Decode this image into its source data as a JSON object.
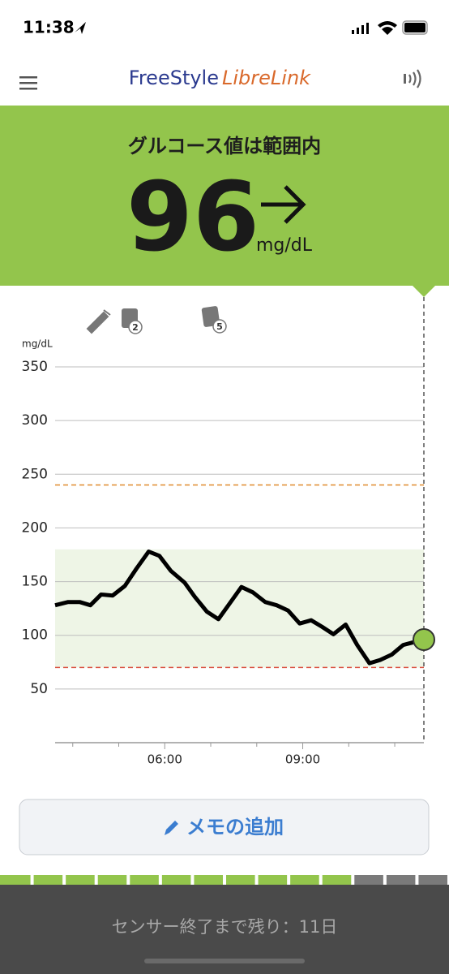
{
  "status_bar": {
    "time": "11:38"
  },
  "header": {
    "brand": "FreeStyle",
    "product": "LibreLink"
  },
  "banner": {
    "status": "グルコース値は範囲内",
    "value": 96,
    "unit": "mg/dL"
  },
  "event_badges": [
    2,
    5
  ],
  "chart_data": {
    "type": "line",
    "y_label": "mg/dL",
    "color": "#000000",
    "x": [
      "03:37",
      "03:54",
      "04:09",
      "04:23",
      "04:37",
      "04:52",
      "05:08",
      "05:23",
      "05:39",
      "05:53",
      "06:08",
      "06:26",
      "06:39",
      "06:55",
      "07:10",
      "07:25",
      "07:40",
      "07:55",
      "08:11",
      "08:26",
      "08:41",
      "08:56",
      "09:11",
      "09:25",
      "09:40",
      "09:56",
      "10:11",
      "10:27",
      "10:41",
      "10:56",
      "11:11",
      "11:38"
    ],
    "values": [
      128,
      131,
      131,
      128,
      138,
      137,
      146,
      162,
      178,
      174,
      160,
      149,
      136,
      122,
      115,
      130,
      145,
      140,
      131,
      128,
      123,
      111,
      114,
      108,
      101,
      110,
      91,
      74,
      77,
      82,
      91,
      96
    ],
    "xlim": [
      "03:37",
      "11:38"
    ],
    "xticks": [
      "06:00",
      "09:00"
    ],
    "xminorticks": [
      "04:00",
      "05:00",
      "07:00",
      "08:00",
      "10:00",
      "11:00"
    ],
    "ylim": [
      0,
      350
    ],
    "yticks": [
      50,
      100,
      150,
      200,
      250,
      300,
      350
    ],
    "grid": true,
    "target_range": [
      70,
      180
    ],
    "high_line": 240,
    "low_line": 70
  },
  "memo_button": {
    "label": "メモの追加"
  },
  "sensor": {
    "text": "センサー終了まで残り：11日",
    "days_total": 14,
    "days_left": 11
  }
}
